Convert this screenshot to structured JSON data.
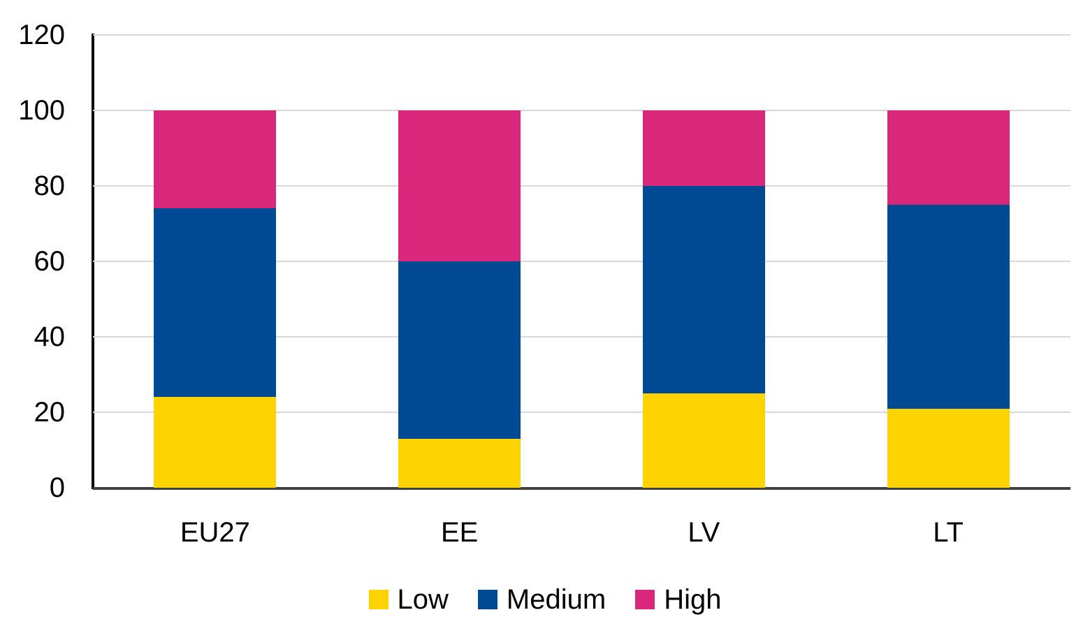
{
  "chart_data": {
    "type": "bar",
    "stacked": true,
    "title": "",
    "xlabel": "",
    "ylabel": "",
    "categories": [
      "EU27",
      "EE",
      "LV",
      "LT"
    ],
    "series": [
      {
        "name": "Low",
        "color": "#FDD301",
        "values": [
          24,
          13,
          25,
          21
        ]
      },
      {
        "name": "Medium",
        "color": "#004A94",
        "values": [
          50,
          47,
          55,
          54
        ]
      },
      {
        "name": "High",
        "color": "#D9287B",
        "values": [
          26,
          40,
          20,
          25
        ]
      }
    ],
    "totals": [
      100,
      100,
      100,
      100
    ],
    "ylim": [
      0,
      120
    ],
    "yticks": [
      0,
      20,
      40,
      60,
      80,
      100,
      120
    ],
    "grid": true,
    "legend_position": "bottom"
  },
  "colors": {
    "background": "#FFFFFF",
    "gridline": "#D9D9D9",
    "y_axis_line": "#000000",
    "x_axis_line": "#404040",
    "text": "#000000"
  }
}
